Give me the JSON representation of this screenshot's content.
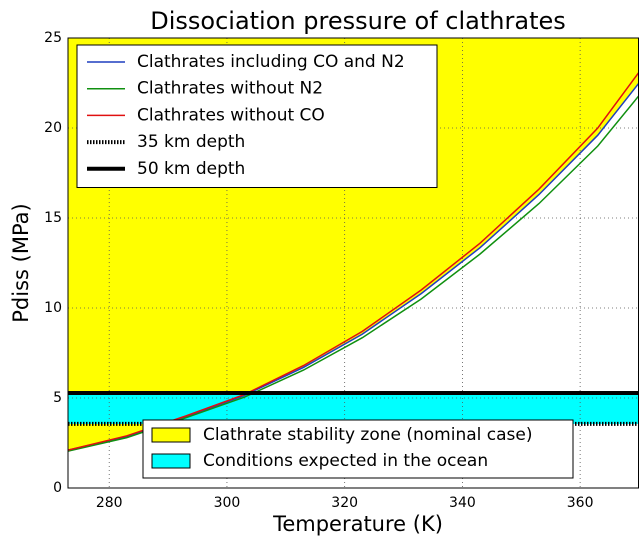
{
  "chart_data": {
    "type": "line",
    "title": "Dissociation pressure of clathrates",
    "xlabel": "Temperature (K)",
    "ylabel": "Pdiss (MPa)",
    "x": [
      273,
      283,
      293,
      303,
      313,
      323,
      333,
      343,
      353,
      363,
      370
    ],
    "series": [
      {
        "name": "Clathrates including CO and N2",
        "color": "#1f3fbf",
        "values": [
          2.1,
          2.85,
          3.95,
          5.15,
          6.7,
          8.55,
          10.8,
          13.35,
          16.3,
          19.6,
          22.5
        ]
      },
      {
        "name": "Clathrates without N2",
        "color": "#109010",
        "values": [
          2.05,
          2.8,
          3.9,
          5.05,
          6.55,
          8.35,
          10.5,
          13.0,
          15.8,
          19.0,
          21.8
        ]
      },
      {
        "name": "Clathrates without CO",
        "color": "#e01010",
        "values": [
          2.1,
          2.9,
          4.0,
          5.2,
          6.8,
          8.7,
          11.0,
          13.6,
          16.6,
          20.0,
          23.1
        ]
      }
    ],
    "hlines": [
      {
        "name": "35 km depth",
        "value": 3.56,
        "style": "dotted",
        "color": "#000000"
      },
      {
        "name": "50 km depth",
        "value": 5.28,
        "style": "solid",
        "color": "#000000"
      }
    ],
    "fills": [
      {
        "name": "Clathrate stability zone (nominal case)",
        "color": "#ffff00"
      },
      {
        "name": "Conditions expected in the ocean",
        "color": "#00ffff"
      }
    ],
    "xlim": [
      273,
      370
    ],
    "ylim": [
      0,
      25
    ],
    "xticks": [
      280,
      300,
      320,
      340,
      360
    ],
    "yticks": [
      0,
      5,
      10,
      15,
      20,
      25
    ],
    "grid": true,
    "legend": "upper left",
    "fill_legend": "lower center"
  }
}
